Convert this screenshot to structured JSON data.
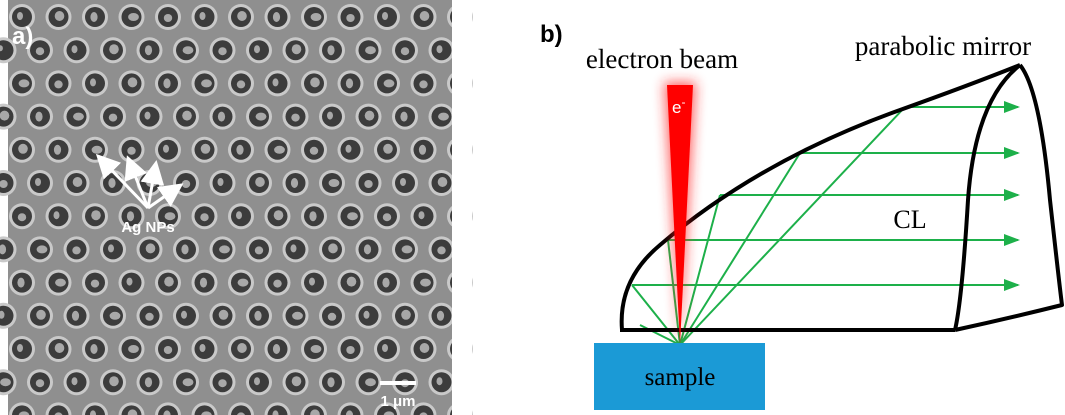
{
  "panel_a": {
    "label": "a)",
    "annotation": "Ag NPs",
    "scale_bar": "1 μm"
  },
  "panel_b": {
    "label": "b)",
    "beam_label": "electron beam",
    "mirror_label": "parabolic mirror",
    "electron_symbol": "e",
    "electron_charge": "-",
    "emission_label": "CL",
    "sample_label": "sample"
  }
}
